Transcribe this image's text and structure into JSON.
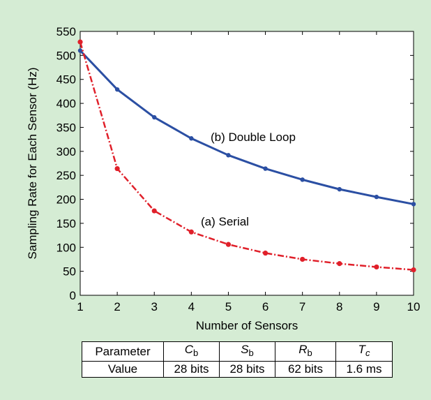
{
  "chart_data": {
    "type": "line",
    "xlabel": "Number of Sensors",
    "ylabel": "Sampling Rate for Each Sensor (Hz)",
    "x": [
      1,
      2,
      3,
      4,
      5,
      6,
      7,
      8,
      9,
      10
    ],
    "xlim": [
      1,
      10
    ],
    "ylim": [
      0,
      550
    ],
    "xticks": [
      "1",
      "2",
      "3",
      "4",
      "5",
      "6",
      "7",
      "8",
      "9",
      "10"
    ],
    "yticks": [
      "0",
      "50",
      "100",
      "150",
      "200",
      "250",
      "300",
      "350",
      "400",
      "450",
      "500",
      "550"
    ],
    "grid": false,
    "series": [
      {
        "name": "(b) Double Loop",
        "color": "#2b4fa3",
        "line_style": "solid",
        "values": [
          510,
          429,
          371,
          327,
          292,
          264,
          241,
          221,
          205,
          190
        ]
      },
      {
        "name": "(a) Serial",
        "color": "#e0202a",
        "line_style": "dash-dot",
        "values": [
          528,
          264,
          176,
          132,
          106,
          88,
          75,
          66,
          59,
          53
        ]
      }
    ]
  },
  "table": {
    "row_label_header": "Parameter",
    "row_label_value": "Value",
    "columns": [
      {
        "symbol": "C",
        "subscript": "b",
        "value": "28 bits"
      },
      {
        "symbol": "S",
        "subscript": "b",
        "value": "28 bits"
      },
      {
        "symbol": "R",
        "subscript": "b",
        "value": "62 bits"
      },
      {
        "symbol": "T",
        "subscript": "c",
        "value": "1.6 ms"
      }
    ]
  }
}
